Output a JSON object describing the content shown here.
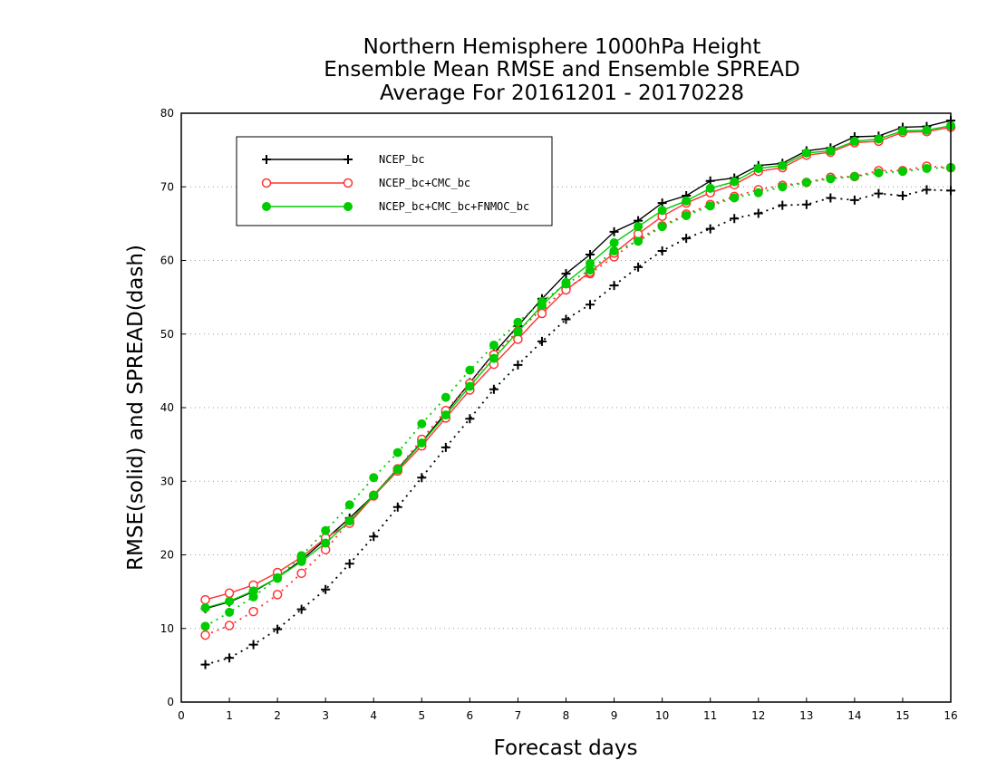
{
  "chart_data": {
    "type": "line",
    "title": [
      "Northern Hemisphere 1000hPa Height",
      "Ensemble Mean RMSE and Ensemble SPREAD",
      "Average For 20161201 - 20170228"
    ],
    "xlabel": "Forecast days",
    "ylabel": "RMSE(solid) and SPREAD(dash)",
    "xlim": [
      0,
      16
    ],
    "ylim": [
      0,
      80
    ],
    "x_ticks": [
      0,
      1,
      2,
      3,
      4,
      5,
      6,
      7,
      8,
      9,
      10,
      11,
      12,
      13,
      14,
      15,
      16
    ],
    "y_ticks": [
      0,
      10,
      20,
      30,
      40,
      50,
      60,
      70,
      80
    ],
    "grid": "horizontal dotted",
    "legend_position": "top-left",
    "x": [
      0.5,
      1,
      1.5,
      2,
      2.5,
      3,
      3.5,
      4,
      4.5,
      5,
      5.5,
      6,
      6.5,
      7,
      7.5,
      8,
      8.5,
      9,
      9.5,
      10,
      10.5,
      11,
      11.5,
      12,
      12.5,
      13,
      13.5,
      14,
      14.5,
      15,
      15.5,
      16
    ],
    "series": [
      {
        "name": "NCEP_bc",
        "color": "#000000",
        "marker": "plus",
        "rmse": [
          12.7,
          13.6,
          15.0,
          16.9,
          19.3,
          22.1,
          25.0,
          28.1,
          31.7,
          35.3,
          39.3,
          43.4,
          47.4,
          51.1,
          54.8,
          58.2,
          60.8,
          63.9,
          65.4,
          67.8,
          68.8,
          70.8,
          71.2,
          72.9,
          73.2,
          74.9,
          75.3,
          76.8,
          76.9,
          78.1,
          78.2,
          79.0
        ],
        "spread": [
          5.1,
          6.0,
          7.8,
          9.9,
          12.6,
          15.3,
          18.8,
          22.5,
          26.5,
          30.5,
          34.6,
          38.5,
          42.5,
          45.8,
          49.0,
          52.0,
          54.0,
          56.6,
          59.1,
          61.3,
          63.0,
          64.3,
          65.7,
          66.4,
          67.5,
          67.6,
          68.5,
          68.2,
          69.1,
          68.8,
          69.6,
          69.5
        ]
      },
      {
        "name": "NCEP_bc+CMC_bc",
        "color": "#ff3333",
        "marker": "open-circle",
        "rmse": [
          13.9,
          14.8,
          15.9,
          17.6,
          19.7,
          22.3,
          24.3,
          28.0,
          31.4,
          34.8,
          38.6,
          42.4,
          45.9,
          49.3,
          52.8,
          56.0,
          58.4,
          61.0,
          63.6,
          66.0,
          67.8,
          69.2,
          70.3,
          72.1,
          72.6,
          74.3,
          74.7,
          76.0,
          76.2,
          77.4,
          77.5,
          78.1
        ],
        "spread": [
          9.1,
          10.4,
          12.3,
          14.6,
          17.5,
          20.7,
          24.6,
          28.1,
          31.7,
          35.7,
          39.6,
          43.3,
          47.2,
          50.4,
          53.4,
          56.2,
          58.2,
          60.5,
          62.9,
          64.7,
          66.3,
          67.6,
          68.7,
          69.6,
          70.2,
          70.6,
          71.3,
          71.4,
          72.2,
          72.2,
          72.8,
          72.6
        ]
      },
      {
        "name": "NCEP_bc+CMC_bc+FNMOC_bc",
        "color": "#00cc00",
        "marker": "filled-circle",
        "rmse": [
          12.8,
          13.7,
          15.1,
          16.9,
          19.1,
          21.6,
          24.6,
          28.1,
          31.6,
          35.2,
          39.0,
          42.9,
          46.7,
          50.3,
          53.9,
          57.0,
          59.6,
          62.4,
          64.6,
          66.8,
          68.1,
          69.8,
          70.7,
          72.5,
          72.9,
          74.6,
          74.9,
          76.2,
          76.5,
          77.6,
          77.7,
          78.3
        ],
        "spread": [
          10.3,
          12.2,
          14.3,
          16.8,
          19.9,
          23.3,
          26.8,
          30.5,
          33.9,
          37.8,
          41.4,
          45.1,
          48.5,
          51.6,
          54.4,
          56.8,
          58.7,
          61.3,
          62.6,
          64.6,
          66.1,
          67.4,
          68.5,
          69.2,
          70.0,
          70.6,
          71.1,
          71.4,
          71.9,
          72.1,
          72.5,
          72.6
        ]
      }
    ]
  }
}
